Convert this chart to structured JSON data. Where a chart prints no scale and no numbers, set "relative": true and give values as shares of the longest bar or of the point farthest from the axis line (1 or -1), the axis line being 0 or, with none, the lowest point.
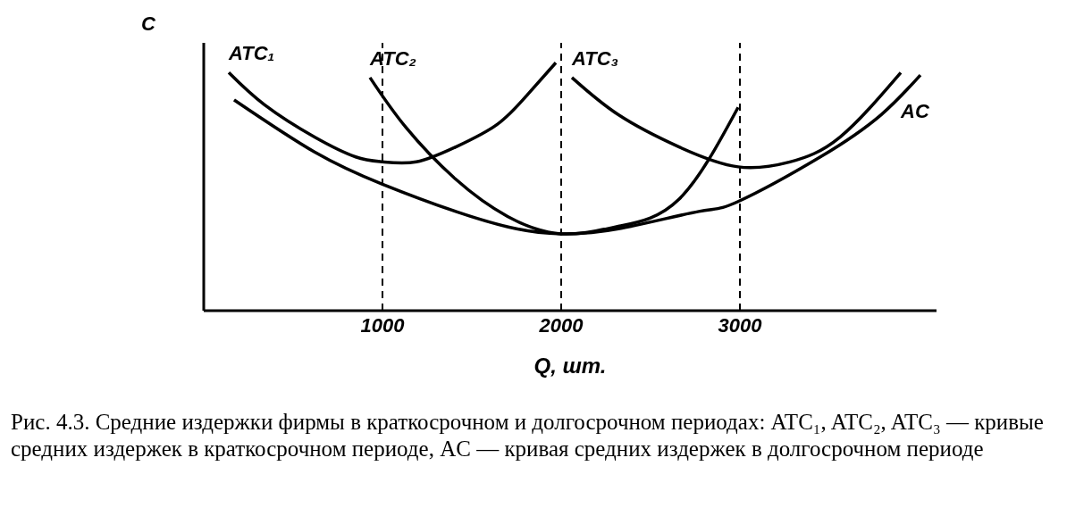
{
  "chart_data": {
    "type": "line",
    "relative": true,
    "xlabel": "Q, шт.",
    "ylabel": "C",
    "xlim": [
      0,
      4100
    ],
    "xticks": [
      1000,
      2000,
      3000
    ],
    "marker": "none",
    "line_style": "solid",
    "series": [
      {
        "name": "ATC₁",
        "color": "#000000",
        "x": [
          140,
          340,
          620,
          850,
          1000,
          1190,
          1410,
          1640,
          1810,
          1970
        ],
        "values": [
          0.96,
          0.83,
          0.7,
          0.62,
          0.6,
          0.6,
          0.66,
          0.75,
          0.87,
          1.0
        ]
      },
      {
        "name": "ATC₂",
        "color": "#000000",
        "x": [
          930,
          1130,
          1410,
          1700,
          2000,
          2320,
          2660,
          2990
        ],
        "values": [
          0.94,
          0.74,
          0.53,
          0.38,
          0.31,
          0.34,
          0.45,
          0.82
        ]
      },
      {
        "name": "ATC₃",
        "color": "#000000",
        "x": [
          2060,
          2320,
          2660,
          2990,
          3280,
          3560,
          3900
        ],
        "values": [
          0.94,
          0.79,
          0.66,
          0.58,
          0.6,
          0.7,
          0.96
        ]
      },
      {
        "name": "AC",
        "color": "#000000",
        "x": [
          170,
          620,
          1000,
          1410,
          1750,
          2000,
          2320,
          2770,
          2990,
          3450,
          3790,
          4010
        ],
        "values": [
          0.85,
          0.64,
          0.51,
          0.4,
          0.33,
          0.31,
          0.33,
          0.4,
          0.44,
          0.62,
          0.79,
          0.95
        ]
      }
    ],
    "ref_lines": [
      {
        "axis": "x",
        "value": 1000,
        "line_style": "dashed",
        "color": "#000000"
      },
      {
        "axis": "x",
        "value": 2000,
        "line_style": "dashed",
        "color": "#000000"
      },
      {
        "axis": "x",
        "value": 3000,
        "line_style": "dashed",
        "color": "#000000"
      }
    ],
    "annotations": [
      "Рис. 4.3. Средние издержки фирмы в краткосрочном и долгосрочном периодах: ATC₁, ATC₂, ATC₃ — кривые средних издержек в краткосрочном периоде, AC — кривая средних издержек в долгосрочном периоде"
    ]
  }
}
